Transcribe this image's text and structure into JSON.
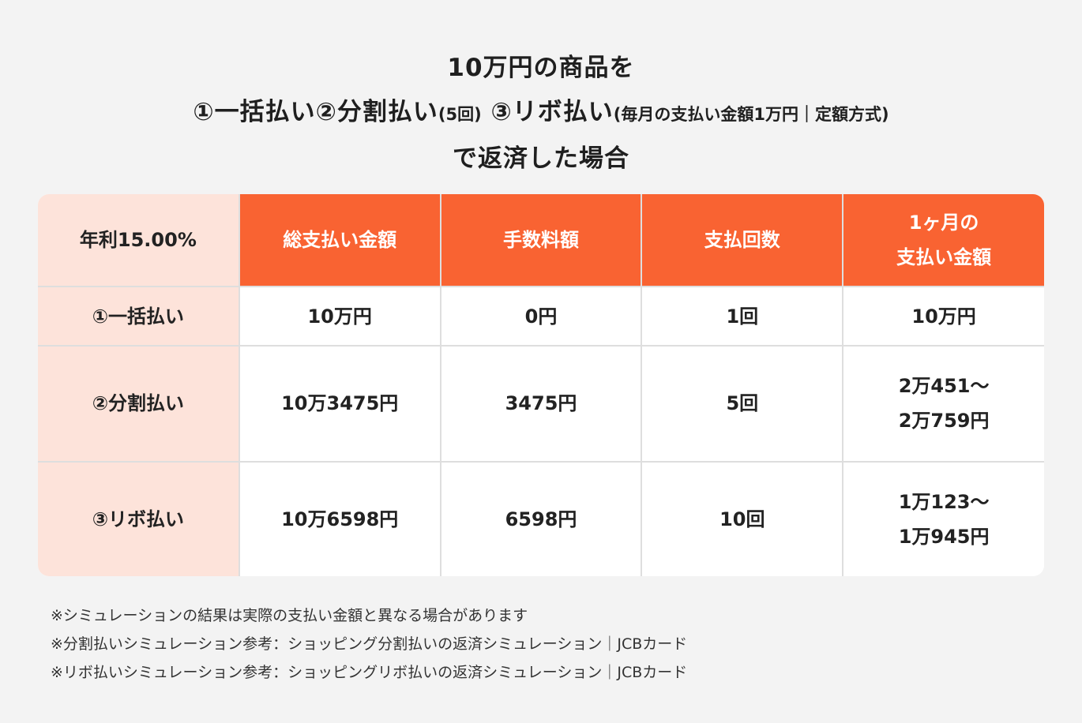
{
  "title": {
    "line1": "10万円の商品を",
    "line2_main": "①一括払い②分割払い",
    "line2_sub1": "(5回)",
    "line2_main2": "③リボ払い",
    "line2_sub2": "(毎月の支払い金額1万円｜定額方式)",
    "line3": "で返済した場合"
  },
  "table": {
    "corner": "年利15.00%",
    "headers": [
      "総支払い金額",
      "手数料額",
      "支払回数"
    ],
    "header_last_line1": "1ヶ月の",
    "header_last_line2": "支払い金額",
    "rows": [
      {
        "label": "①一括払い",
        "total": "10万円",
        "fee": "0円",
        "count": "1回",
        "monthly_line1": "10万円",
        "monthly_line2": ""
      },
      {
        "label": "②分割払い",
        "total": "10万3475円",
        "fee": "3475円",
        "count": "5回",
        "monthly_line1": "2万451〜",
        "monthly_line2": "2万759円"
      },
      {
        "label": "③リボ払い",
        "total": "10万6598円",
        "fee": "6598円",
        "count": "10回",
        "monthly_line1": "1万123〜",
        "monthly_line2": "1万945円"
      }
    ]
  },
  "notes": [
    "※シミュレーションの結果は実際の支払い金額と異なる場合があります",
    "※分割払いシミュレーション参考：ショッピング分割払いの返済シミュレーション｜JCBカード",
    "※リボ払いシミュレーション参考：ショッピングリボ払いの返済シミュレーション｜JCBカード"
  ],
  "colors": {
    "header": "#f96332",
    "row_header": "#fde3da",
    "background": "#f3f3f3"
  }
}
